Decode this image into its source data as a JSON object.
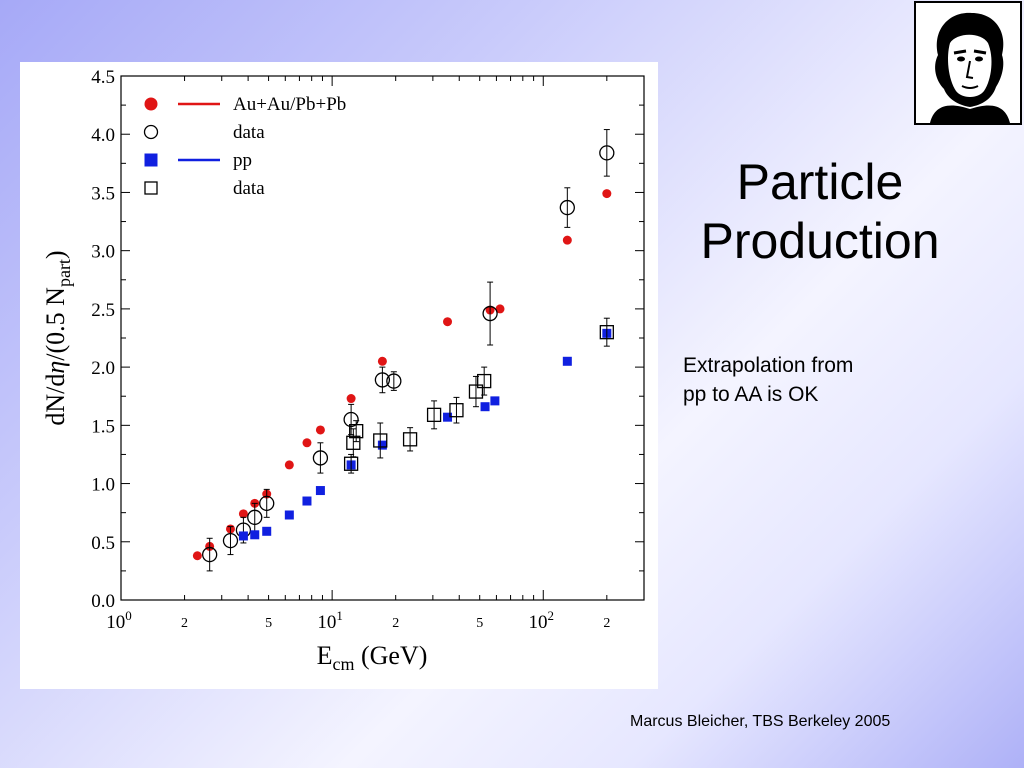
{
  "slide": {
    "title_line1": "Particle",
    "title_line2": "Production",
    "note_line1": "Extrapolation from",
    "note_line2": "pp to AA is OK",
    "footer": "Marcus Bleicher, TBS Berkeley 2005"
  },
  "colors": {
    "aa": "#e01515",
    "pp": "#1020e0",
    "data": "#000000"
  },
  "chart_data": {
    "type": "scatter",
    "xscale": "log",
    "xlim": [
      1,
      300
    ],
    "ylim": [
      0,
      4.5
    ],
    "xlabel_main": "E",
    "xlabel_sub": "cm",
    "xlabel_unit": " (GeV)",
    "ylabel_pre": "dN/d",
    "ylabel_eta": "η",
    "ylabel_mid": "/(0.5 N",
    "ylabel_sub": "part",
    "ylabel_post": ")",
    "yticks": [
      "0.0",
      "0.5",
      "1.0",
      "1.5",
      "2.0",
      "2.5",
      "3.0",
      "3.5",
      "4.0",
      "4.5"
    ],
    "xticks_major": [
      {
        "value": 1,
        "base": "10",
        "exp": "0"
      },
      {
        "value": 10,
        "base": "10",
        "exp": "1"
      },
      {
        "value": 100,
        "base": "10",
        "exp": "2"
      }
    ],
    "xticks_minor_labels": [
      {
        "value": 2,
        "label": "2"
      },
      {
        "value": 5,
        "label": "5"
      },
      {
        "value": 20,
        "label": "2"
      },
      {
        "value": 50,
        "label": "5"
      },
      {
        "value": 200,
        "label": "2"
      }
    ],
    "legend": [
      {
        "label": "Au+Au/Pb+Pb",
        "marker": "filled-circle",
        "line": true,
        "color": "aa"
      },
      {
        "label": "data",
        "marker": "open-circle",
        "line": false,
        "color": "data"
      },
      {
        "label": "pp",
        "marker": "filled-square",
        "line": true,
        "color": "pp"
      },
      {
        "label": "data",
        "marker": "open-square",
        "line": false,
        "color": "data"
      }
    ],
    "series": [
      {
        "name": "Au+Au/Pb+Pb",
        "marker": "filled-circle",
        "color": "aa",
        "points": [
          [
            2.3,
            0.38
          ],
          [
            2.63,
            0.46
          ],
          [
            3.3,
            0.61
          ],
          [
            3.8,
            0.74
          ],
          [
            4.3,
            0.83
          ],
          [
            4.9,
            0.91
          ],
          [
            6.27,
            1.16
          ],
          [
            7.6,
            1.35
          ],
          [
            8.8,
            1.46
          ],
          [
            12.3,
            1.73
          ],
          [
            17.3,
            2.05
          ],
          [
            35.2,
            2.39
          ],
          [
            56,
            2.49
          ],
          [
            62.4,
            2.5
          ],
          [
            130,
            3.09
          ],
          [
            200,
            3.49
          ]
        ]
      },
      {
        "name": "data",
        "marker": "open-circle",
        "color": "data",
        "points": [
          [
            2.63,
            0.39,
            0.14
          ],
          [
            3.3,
            0.51,
            0.12
          ],
          [
            3.8,
            0.6,
            0.11
          ],
          [
            4.3,
            0.71,
            0.12
          ],
          [
            4.9,
            0.83,
            0.12
          ],
          [
            8.8,
            1.22,
            0.13
          ],
          [
            12.3,
            1.55,
            0.13
          ],
          [
            17.3,
            1.89,
            0.11
          ],
          [
            19.6,
            1.88,
            0.08
          ],
          [
            56,
            2.46,
            0.27
          ],
          [
            130,
            3.37,
            0.17
          ],
          [
            200,
            3.84,
            0.2
          ]
        ]
      },
      {
        "name": "pp",
        "marker": "filled-square",
        "color": "pp",
        "points": [
          [
            3.8,
            0.55
          ],
          [
            4.3,
            0.56
          ],
          [
            4.9,
            0.59
          ],
          [
            6.27,
            0.73
          ],
          [
            7.6,
            0.85
          ],
          [
            8.8,
            0.94
          ],
          [
            12.3,
            1.16
          ],
          [
            17.3,
            1.33
          ],
          [
            35.2,
            1.57
          ],
          [
            53,
            1.66
          ],
          [
            59,
            1.71
          ],
          [
            130,
            2.05
          ],
          [
            200,
            2.29
          ]
        ]
      },
      {
        "name": "data",
        "marker": "open-square",
        "color": "data",
        "points": [
          [
            12.3,
            1.17,
            0.08
          ],
          [
            12.6,
            1.35,
            0.12
          ],
          [
            13.0,
            1.45,
            0.09
          ],
          [
            16.9,
            1.37,
            0.15
          ],
          [
            23.4,
            1.38,
            0.1
          ],
          [
            30.4,
            1.59,
            0.12
          ],
          [
            38.8,
            1.63,
            0.11
          ],
          [
            48,
            1.79,
            0.13
          ],
          [
            52.5,
            1.88,
            0.12
          ],
          [
            200,
            2.3,
            0.12
          ]
        ]
      }
    ]
  }
}
